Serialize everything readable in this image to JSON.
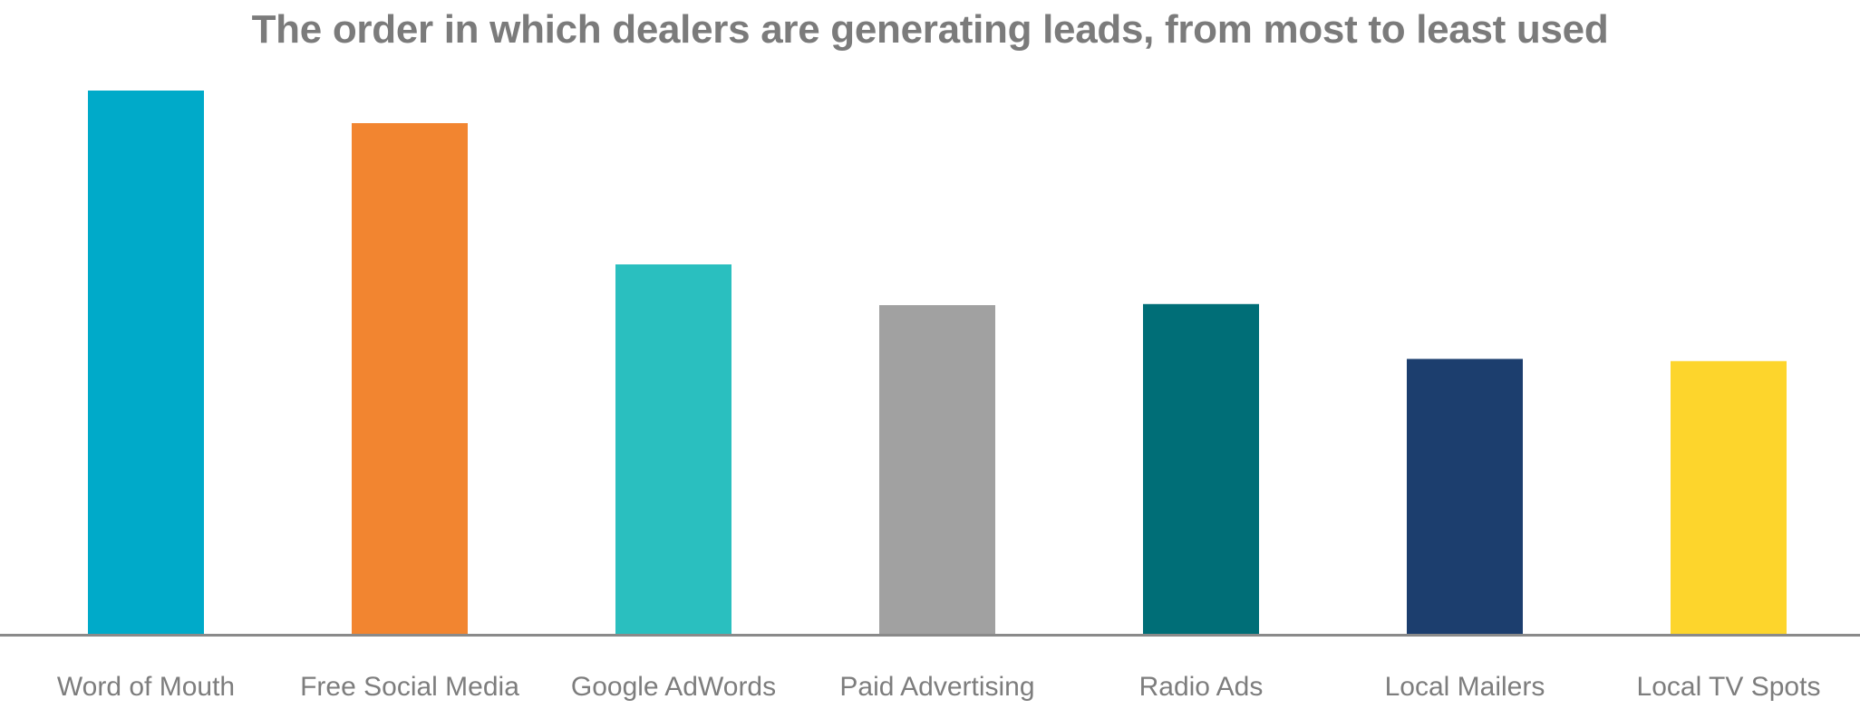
{
  "chart_data": {
    "type": "bar",
    "title": "The order in which dealers are generating leads, from most to least used",
    "xlabel": "",
    "ylabel": "",
    "categories": [
      "Word of Mouth",
      "Free Social Media",
      "Google AdWords",
      "Paid Advertising",
      "Radio Ads",
      "Local Mailers",
      "Local TV Spots"
    ],
    "values": [
      100,
      94,
      68,
      60.5,
      60.7,
      50.6,
      50.2
    ],
    "colors": [
      "#00aac9",
      "#f28530",
      "#2abfbf",
      "#a1a1a1",
      "#006e77",
      "#1c3e6e",
      "#fdd52c"
    ],
    "ylim": [
      0,
      100
    ],
    "grid": false,
    "legend": "none",
    "axis_color": "#8a8a8a"
  }
}
